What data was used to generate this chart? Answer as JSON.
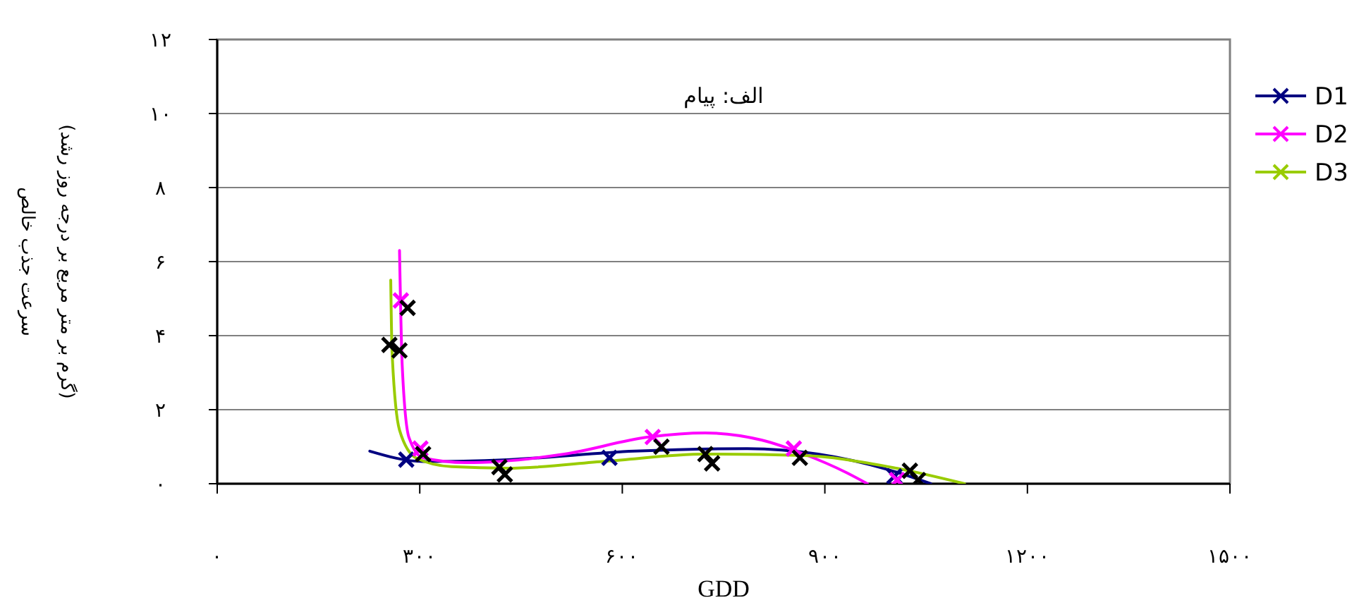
{
  "chart_data": {
    "type": "line",
    "title": "الف: پیام",
    "xlabel": "GDD",
    "ylabel": "سرعت جذب خالص\n(گرم بر متر مربع بر درجه روز رشد)",
    "xlim": [
      0,
      1500
    ],
    "xticks": [
      {
        "value": 0,
        "label": "۰"
      },
      {
        "value": 300,
        "label": "۳۰۰"
      },
      {
        "value": 600,
        "label": "۶۰۰"
      },
      {
        "value": 900,
        "label": "۹۰۰"
      },
      {
        "value": 1200,
        "label": "۱۲۰۰"
      },
      {
        "value": 1500,
        "label": "۱۵۰۰"
      }
    ],
    "ylim": [
      0,
      12
    ],
    "yticks": [
      {
        "value": 0,
        "label": "۰"
      },
      {
        "value": 2,
        "label": "۲"
      },
      {
        "value": 4,
        "label": "۴"
      },
      {
        "value": 6,
        "label": "۶"
      },
      {
        "value": 8,
        "label": "۸"
      },
      {
        "value": 10,
        "label": "۱۰"
      },
      {
        "value": 12,
        "label": "۱۲"
      }
    ],
    "grid": "y",
    "legend": "right",
    "series": [
      {
        "name": "D1",
        "color": "#000080",
        "x": [
          226,
          305,
          430,
          618,
          785,
          890,
          994,
          1057
        ],
        "values": [
          0.88,
          0.6,
          0.65,
          0.88,
          0.95,
          0.8,
          0.38,
          0
        ]
      },
      {
        "name": "D2",
        "color": "#ff00ff",
        "x": [
          270,
          274,
          284,
          305,
          368,
          514,
          639,
          723,
          806,
          869,
          932,
          963
        ],
        "values": [
          6.3,
          3.2,
          1.25,
          0.7,
          0.57,
          0.8,
          1.26,
          1.37,
          1.18,
          0.8,
          0.3,
          0
        ]
      },
      {
        "name": "D3",
        "color": "#99cc00",
        "x": [
          257,
          259,
          270,
          295,
          347,
          430,
          577,
          723,
          869,
          994,
          1107
        ],
        "values": [
          5.5,
          3.55,
          1.45,
          0.69,
          0.46,
          0.42,
          0.61,
          0.8,
          0.76,
          0.46,
          0
        ]
      },
      {
        "type": "scatter",
        "color": "#000080",
        "marker": "cross",
        "x": [
          280,
          581,
          1003
        ],
        "values": [
          0.65,
          0.7,
          0.2
        ]
      },
      {
        "type": "scatter",
        "color": "#ff00ff",
        "marker": "cross",
        "x": [
          272,
          301,
          645,
          854,
          1007
        ],
        "values": [
          4.95,
          0.95,
          1.26,
          0.95,
          0.1
        ]
      },
      {
        "type": "scatter",
        "color": "#000000",
        "marker": "cross",
        "x": [
          255,
          282,
          270,
          305,
          418,
          426,
          658,
          723,
          733,
          863,
          1026,
          1038
        ],
        "values": [
          3.75,
          4.75,
          3.6,
          0.8,
          0.45,
          0.25,
          1.0,
          0.8,
          0.55,
          0.7,
          0.35,
          0.1
        ]
      }
    ]
  }
}
